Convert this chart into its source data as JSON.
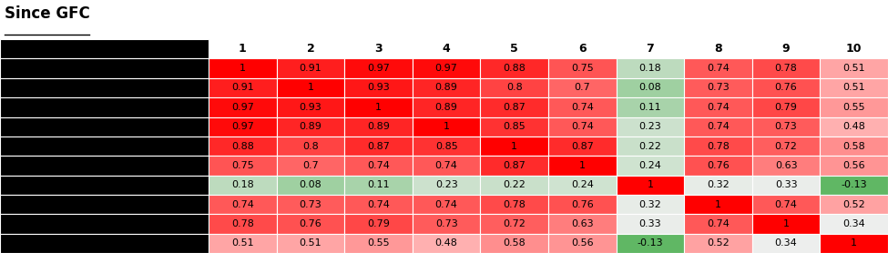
{
  "title": "Since GFC",
  "col_headers": [
    "1",
    "2",
    "3",
    "4",
    "5",
    "6",
    "7",
    "8",
    "9",
    "10"
  ],
  "matrix": [
    [
      1,
      0.91,
      0.97,
      0.97,
      0.88,
      0.75,
      0.18,
      0.74,
      0.78,
      0.51
    ],
    [
      0.91,
      1,
      0.93,
      0.89,
      0.8,
      0.7,
      0.08,
      0.73,
      0.76,
      0.51
    ],
    [
      0.97,
      0.93,
      1,
      0.89,
      0.87,
      0.74,
      0.11,
      0.74,
      0.79,
      0.55
    ],
    [
      0.97,
      0.89,
      0.89,
      1,
      0.85,
      0.74,
      0.23,
      0.74,
      0.73,
      0.48
    ],
    [
      0.88,
      0.8,
      0.87,
      0.85,
      1,
      0.87,
      0.22,
      0.78,
      0.72,
      0.58
    ],
    [
      0.75,
      0.7,
      0.74,
      0.74,
      0.87,
      1,
      0.24,
      0.76,
      0.63,
      0.56
    ],
    [
      0.18,
      0.08,
      0.11,
      0.23,
      0.22,
      0.24,
      1,
      0.32,
      0.33,
      -0.13
    ],
    [
      0.74,
      0.73,
      0.74,
      0.74,
      0.78,
      0.76,
      0.32,
      1,
      0.74,
      0.52
    ],
    [
      0.78,
      0.76,
      0.79,
      0.73,
      0.72,
      0.63,
      0.33,
      0.74,
      1,
      0.34
    ],
    [
      0.51,
      0.51,
      0.55,
      0.48,
      0.58,
      0.56,
      -0.13,
      0.52,
      0.34,
      1
    ]
  ],
  "display_values": [
    [
      "1",
      "0.91",
      "0.97",
      "0.97",
      "0.88",
      "0.75",
      "0.18",
      "0.74",
      "0.78",
      "0.51"
    ],
    [
      "0.91",
      "1",
      "0.93",
      "0.89",
      "0.8",
      "0.7",
      "0.08",
      "0.73",
      "0.76",
      "0.51"
    ],
    [
      "0.97",
      "0.93",
      "1",
      "0.89",
      "0.87",
      "0.74",
      "0.11",
      "0.74",
      "0.79",
      "0.55"
    ],
    [
      "0.97",
      "0.89",
      "0.89",
      "1",
      "0.85",
      "0.74",
      "0.23",
      "0.74",
      "0.73",
      "0.48"
    ],
    [
      "0.88",
      "0.8",
      "0.87",
      "0.85",
      "1",
      "0.87",
      "0.22",
      "0.78",
      "0.72",
      "0.58"
    ],
    [
      "0.75",
      "0.7",
      "0.74",
      "0.74",
      "0.87",
      "1",
      "0.24",
      "0.76",
      "0.63",
      "0.56"
    ],
    [
      "0.18",
      "0.08",
      "0.11",
      "0.23",
      "0.22",
      "0.24",
      "1",
      "0.32",
      "0.33",
      "-0.13"
    ],
    [
      "0.74",
      "0.73",
      "0.74",
      "0.74",
      "0.78",
      "0.76",
      "0.32",
      "1",
      "0.74",
      "0.52"
    ],
    [
      "0.78",
      "0.76",
      "0.79",
      "0.73",
      "0.72",
      "0.63",
      "0.33",
      "0.74",
      "1",
      "0.34"
    ],
    [
      "0.51",
      "0.51",
      "0.55",
      "0.48",
      "0.58",
      "0.56",
      "-0.13",
      "0.52",
      "0.34",
      "1"
    ]
  ],
  "title_fontsize": 12,
  "cell_fontsize": 8,
  "header_fontsize": 9,
  "background_color": "#ffffff",
  "vmin": -0.2,
  "vmax": 1.0,
  "green_color": [
    76,
    175,
    80
  ],
  "red_color": [
    255,
    0,
    0
  ],
  "white_color": [
    255,
    255,
    255
  ]
}
